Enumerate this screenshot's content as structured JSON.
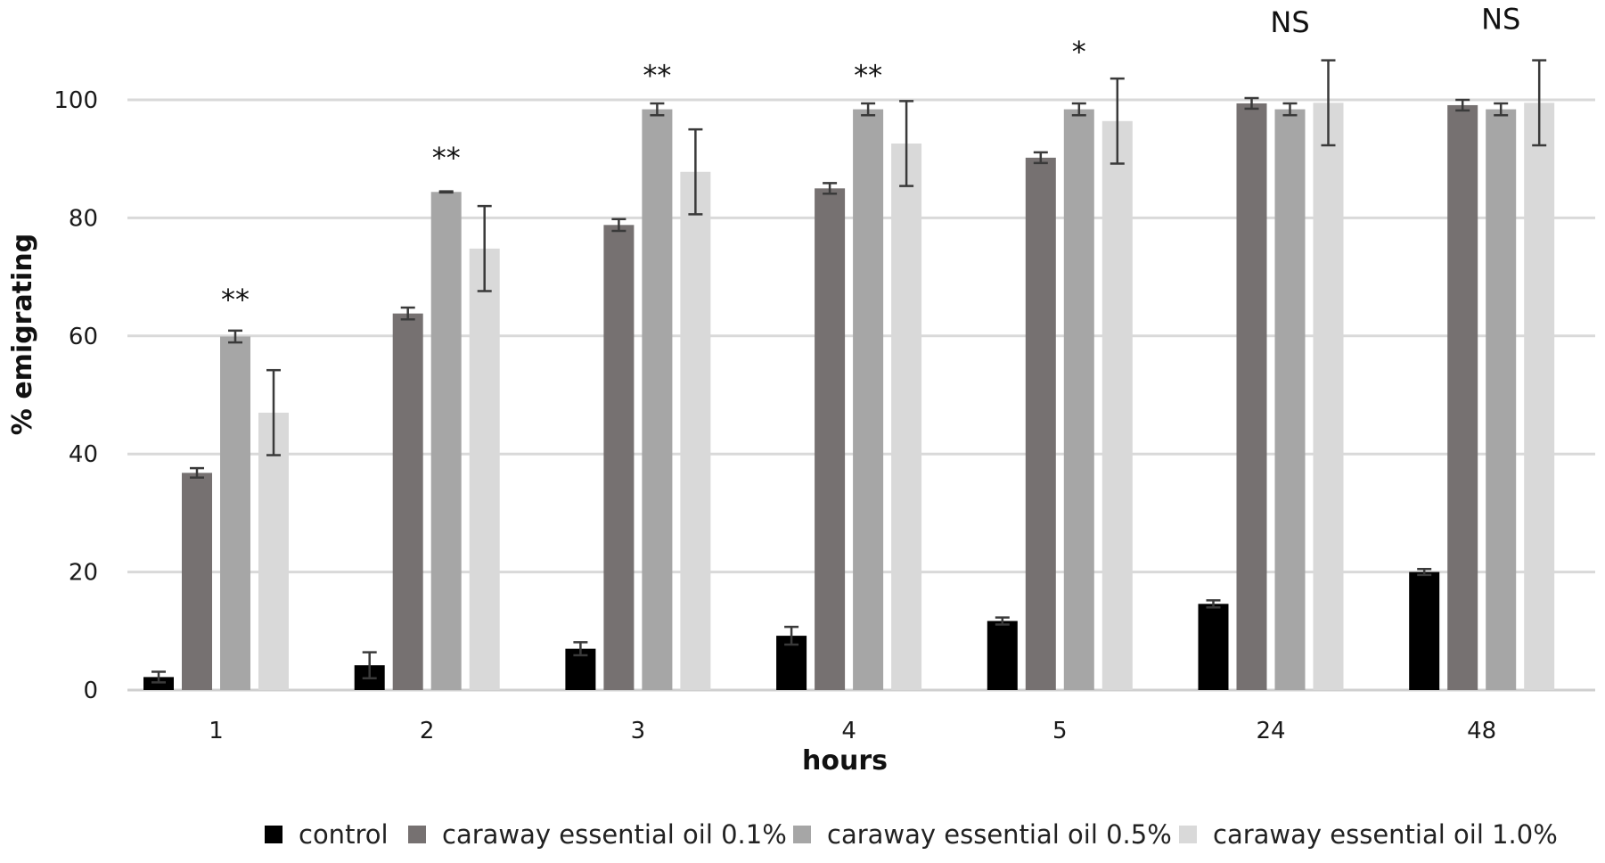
{
  "chart_data": {
    "type": "bar",
    "xlabel": "hours",
    "ylabel": "% emigrating",
    "categories": [
      "1",
      "2",
      "3",
      "4",
      "5",
      "24",
      "48"
    ],
    "ylim": [
      0,
      100
    ],
    "yticks": [
      0,
      20,
      40,
      60,
      80,
      100
    ],
    "grid": true,
    "legend_position": "bottom",
    "series": [
      {
        "name": "control",
        "color": "#000000",
        "values": [
          2.2,
          4.2,
          7.0,
          9.2,
          11.7,
          14.6,
          20.0
        ],
        "errors": [
          0.9,
          2.2,
          1.1,
          1.5,
          0.6,
          0.6,
          0.5
        ]
      },
      {
        "name": "caraway essential oil 0.1%",
        "color": "#767171",
        "values": [
          36.8,
          63.8,
          78.8,
          85.0,
          90.2,
          99.4,
          99.1
        ],
        "errors": [
          0.8,
          1.0,
          1.0,
          0.9,
          0.9,
          0.9,
          0.9
        ]
      },
      {
        "name": "caraway essential oil 0.5%",
        "color": "#a6a6a6",
        "values": [
          59.9,
          84.4,
          98.4,
          98.4,
          98.4,
          98.4,
          98.4
        ],
        "errors": [
          1.0,
          0.1,
          1.0,
          1.0,
          1.0,
          1.0,
          1.0
        ]
      },
      {
        "name": "caraway essential oil 1.0%",
        "color": "#d9d9d9",
        "values": [
          47.0,
          74.8,
          87.8,
          92.6,
          96.4,
          99.5,
          99.5
        ],
        "errors": [
          7.2,
          7.2,
          7.2,
          7.2,
          7.2,
          7.2,
          7.2
        ]
      }
    ],
    "annotations": [
      {
        "category": "1",
        "text": "**",
        "y": 64.5
      },
      {
        "category": "2",
        "text": "**",
        "y": 88.5
      },
      {
        "category": "3",
        "text": "**",
        "y": 102.5
      },
      {
        "category": "4",
        "text": "**",
        "y": 102.5
      },
      {
        "category": "5",
        "text": "*",
        "y": 106.5
      },
      {
        "category": "24",
        "text": "NS",
        "y": 111.5
      },
      {
        "category": "48",
        "text": "NS",
        "y": 112.0
      }
    ]
  }
}
